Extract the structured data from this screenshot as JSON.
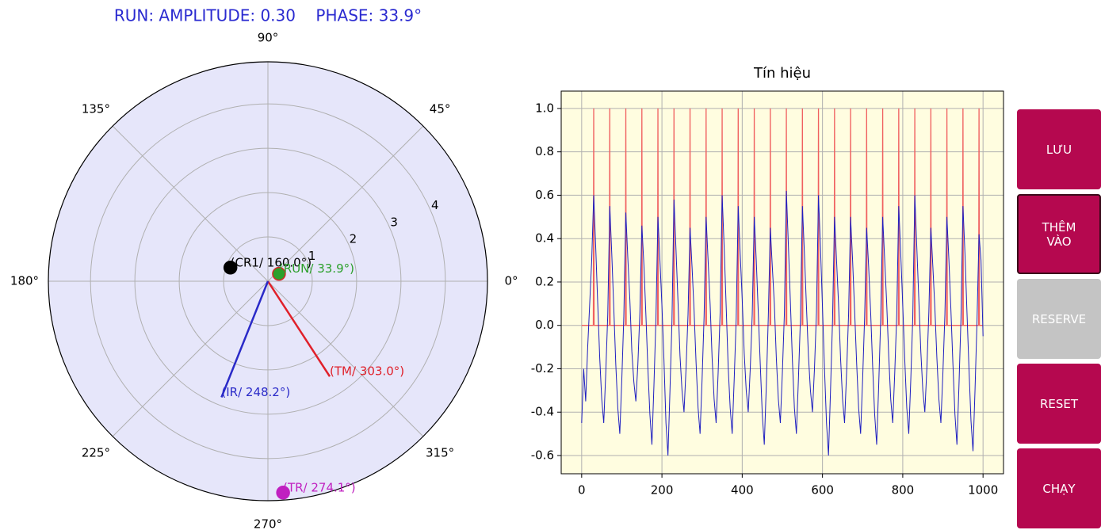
{
  "header": {
    "status": "RUN: AMPLITUDE: 0.30    PHASE: 33.9°"
  },
  "chart_data": [
    {
      "type": "polar",
      "rlim": [
        0,
        4.95
      ],
      "rticks": [
        1,
        2,
        3,
        4
      ],
      "theta_ticks": [
        {
          "value": 0,
          "label": "0°"
        },
        {
          "value": 45,
          "label": "45°"
        },
        {
          "value": 90,
          "label": "90°"
        },
        {
          "value": 135,
          "label": "135°"
        },
        {
          "value": 180,
          "label": "180°"
        },
        {
          "value": 225,
          "label": "225°"
        },
        {
          "value": 270,
          "label": "270°"
        },
        {
          "value": 315,
          "label": "315°"
        }
      ],
      "points": [
        {
          "label": "(CR1/ 160.0°)",
          "theta": 160,
          "r": 0.9,
          "color": "#000000",
          "marker": "dot"
        },
        {
          "label": "(RUN/ 33.9°)",
          "theta": 33.9,
          "r": 0.3,
          "color": "#2ca02c",
          "edgecolor": "#d62728",
          "marker": "dot"
        },
        {
          "label": "(TM/ 303.0°)",
          "theta": 303,
          "r": 2.56,
          "color": "#e0202a",
          "marker": "line"
        },
        {
          "label": "(IR/ 248.2°)",
          "theta": 248.2,
          "r": 2.82,
          "color": "#2a2ac8",
          "marker": "line"
        },
        {
          "label": "(TR/ 274.1°)",
          "theta": 274.1,
          "r": 4.78,
          "color": "#c020c0",
          "marker": "dot"
        }
      ]
    },
    {
      "type": "line",
      "title": "Tín hiệu",
      "xlim": [
        -51,
        1051
      ],
      "ylim": [
        -0.684,
        1.08
      ],
      "xticks": [
        0,
        200,
        400,
        600,
        800,
        1000
      ],
      "yticks": [
        -0.6,
        -0.4,
        -0.2,
        {
          "value": 0,
          "label": "0.0"
        },
        0.2,
        0.4,
        0.6,
        0.8,
        {
          "value": 1,
          "label": "1.0"
        }
      ],
      "grid": true,
      "background": "#fffde0",
      "series": [
        {
          "color": "#f06060",
          "x": [
            0,
            29,
            30,
            31,
            69,
            70,
            71,
            109,
            110,
            111,
            149,
            150,
            151,
            189,
            190,
            191,
            229,
            230,
            231,
            269,
            270,
            271,
            309,
            310,
            311,
            349,
            350,
            351,
            389,
            390,
            391,
            429,
            430,
            431,
            469,
            470,
            471,
            509,
            510,
            511,
            549,
            550,
            551,
            589,
            590,
            591,
            629,
            630,
            631,
            669,
            670,
            671,
            709,
            710,
            711,
            749,
            750,
            751,
            789,
            790,
            791,
            829,
            830,
            831,
            869,
            870,
            871,
            909,
            910,
            911,
            949,
            950,
            951,
            989,
            990,
            991,
            1000
          ],
          "values": [
            0,
            0,
            1,
            0,
            0,
            1,
            0,
            0,
            1,
            0,
            0,
            1,
            0,
            0,
            1,
            0,
            0,
            1,
            0,
            0,
            1,
            0,
            0,
            1,
            0,
            0,
            1,
            0,
            0,
            1,
            0,
            0,
            1,
            0,
            0,
            1,
            0,
            0,
            1,
            0,
            0,
            1,
            0,
            0,
            1,
            0,
            0,
            1,
            0,
            0,
            1,
            0,
            0,
            1,
            0,
            0,
            1,
            0,
            0,
            1,
            0,
            0,
            1,
            0,
            0,
            1,
            0,
            0,
            1,
            0,
            0,
            1,
            0,
            0,
            1,
            0,
            0
          ]
        },
        {
          "color": "#1f1fc0",
          "x": [
            0,
            5,
            10,
            15,
            20,
            25,
            30,
            35,
            40,
            45,
            50,
            55,
            60,
            65,
            70,
            75,
            80,
            85,
            90,
            95,
            100,
            105,
            110,
            115,
            120,
            125,
            130,
            135,
            140,
            145,
            150,
            155,
            160,
            165,
            170,
            175,
            180,
            185,
            190,
            195,
            200,
            205,
            210,
            215,
            220,
            225,
            230,
            235,
            240,
            245,
            250,
            255,
            260,
            265,
            270,
            275,
            280,
            285,
            290,
            295,
            300,
            305,
            310,
            315,
            320,
            325,
            330,
            335,
            340,
            345,
            350,
            355,
            360,
            365,
            370,
            375,
            380,
            385,
            390,
            395,
            400,
            405,
            410,
            415,
            420,
            425,
            430,
            435,
            440,
            445,
            450,
            455,
            460,
            465,
            470,
            475,
            480,
            485,
            490,
            495,
            500,
            505,
            510,
            515,
            520,
            525,
            530,
            535,
            540,
            545,
            550,
            555,
            560,
            565,
            570,
            575,
            580,
            585,
            590,
            595,
            600,
            605,
            610,
            615,
            620,
            625,
            630,
            635,
            640,
            645,
            650,
            655,
            660,
            665,
            670,
            675,
            680,
            685,
            690,
            695,
            700,
            705,
            710,
            715,
            720,
            725,
            730,
            735,
            740,
            745,
            750,
            755,
            760,
            765,
            770,
            775,
            780,
            785,
            790,
            795,
            800,
            805,
            810,
            815,
            820,
            825,
            830,
            835,
            840,
            845,
            850,
            855,
            860,
            865,
            870,
            875,
            880,
            885,
            890,
            895,
            900,
            905,
            910,
            915,
            920,
            925,
            930,
            935,
            940,
            945,
            950,
            955,
            960,
            965,
            970,
            975,
            980,
            985,
            990,
            995,
            1000
          ],
          "values": [
            -0.45,
            -0.2,
            -0.35,
            -0.1,
            0.1,
            0.3,
            0.6,
            0.36,
            0.1,
            -0.15,
            -0.34,
            -0.45,
            -0.22,
            0.05,
            0.55,
            0.33,
            0.08,
            -0.18,
            -0.38,
            -0.5,
            -0.25,
            0.04,
            0.52,
            0.31,
            0.12,
            -0.12,
            -0.26,
            -0.35,
            -0.18,
            0.06,
            0.46,
            0.28,
            0.05,
            -0.2,
            -0.41,
            -0.55,
            -0.28,
            0.03,
            0.5,
            0.3,
            0.09,
            -0.16,
            -0.45,
            -0.6,
            -0.3,
            0.02,
            0.58,
            0.35,
            0.11,
            -0.14,
            -0.3,
            -0.4,
            -0.2,
            0.05,
            0.45,
            0.27,
            0.07,
            -0.17,
            -0.38,
            -0.5,
            -0.25,
            0.04,
            0.5,
            0.3,
            0.1,
            -0.15,
            -0.34,
            -0.45,
            -0.22,
            0.06,
            0.6,
            0.36,
            0.09,
            -0.19,
            -0.38,
            -0.5,
            -0.25,
            0.03,
            0.55,
            0.33,
            0.12,
            -0.13,
            -0.3,
            -0.4,
            -0.2,
            0.05,
            0.5,
            0.3,
            0.06,
            -0.18,
            -0.41,
            -0.55,
            -0.28,
            0.04,
            0.45,
            0.27,
            0.1,
            -0.15,
            -0.34,
            -0.45,
            -0.22,
            0.05,
            0.62,
            0.37,
            0.11,
            -0.16,
            -0.38,
            -0.5,
            -0.25,
            0.03,
            0.55,
            0.33,
            0.09,
            -0.14,
            -0.3,
            -0.4,
            -0.2,
            0.06,
            0.6,
            0.36,
            0.08,
            -0.2,
            -0.45,
            -0.6,
            -0.3,
            0.02,
            0.5,
            0.3,
            0.1,
            -0.15,
            -0.34,
            -0.45,
            -0.22,
            0.05,
            0.5,
            0.3,
            0.07,
            -0.17,
            -0.38,
            -0.5,
            -0.25,
            0.04,
            0.45,
            0.27,
            0.06,
            -0.19,
            -0.41,
            -0.55,
            -0.28,
            0.03,
            0.5,
            0.3,
            0.1,
            -0.14,
            -0.34,
            -0.45,
            -0.22,
            0.05,
            0.55,
            0.33,
            0.09,
            -0.16,
            -0.38,
            -0.5,
            -0.25,
            0.04,
            0.6,
            0.36,
            0.12,
            -0.12,
            -0.3,
            -0.4,
            -0.2,
            0.06,
            0.45,
            0.27,
            0.08,
            -0.15,
            -0.34,
            -0.45,
            -0.22,
            0.05,
            0.5,
            0.3,
            0.07,
            -0.18,
            -0.41,
            -0.55,
            -0.28,
            0.03,
            0.55,
            0.33,
            0.06,
            -0.2,
            -0.44,
            -0.58,
            -0.3,
            0.02,
            0.42,
            0.3,
            -0.05
          ]
        }
      ]
    }
  ],
  "buttons": [
    {
      "lines": [
        "LƯU"
      ],
      "disabled": false
    },
    {
      "lines": [
        "THÊM",
        "VÀO"
      ],
      "disabled": false
    },
    {
      "lines": [
        "RESERVE"
      ],
      "disabled": true
    },
    {
      "lines": [
        "RESET"
      ],
      "disabled": false
    },
    {
      "lines": [
        "CHẠY"
      ],
      "disabled": false
    }
  ]
}
